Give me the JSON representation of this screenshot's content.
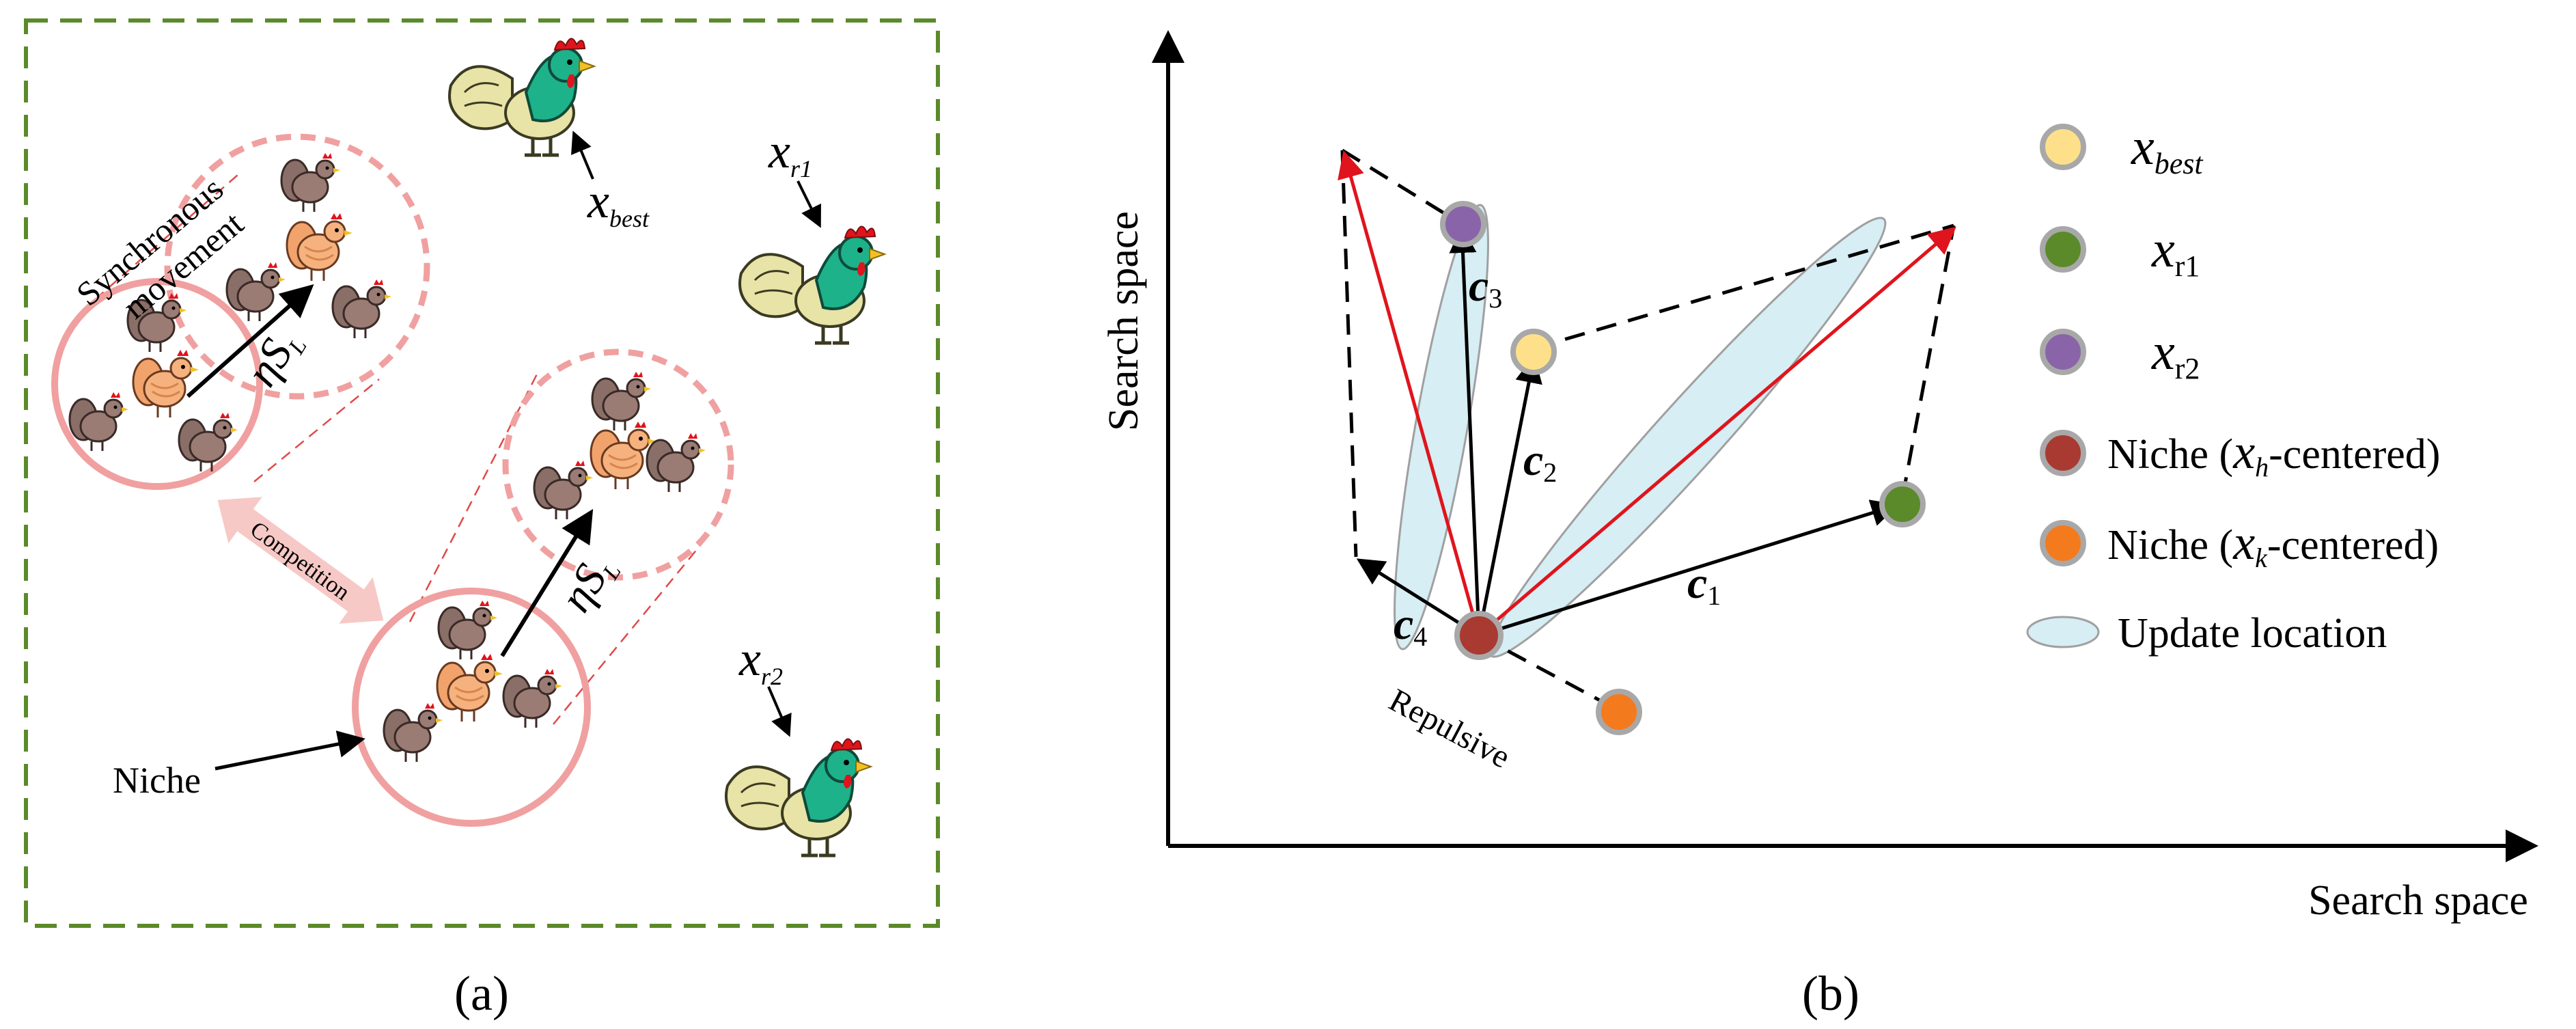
{
  "panel_a": {
    "caption": "(a)",
    "labels": {
      "synchronous_line1": "Synchronous",
      "synchronous_line2": "movement",
      "competition": "Competition",
      "niche": "Niche",
      "eta": "η",
      "step_s": "S",
      "step_sub": "L"
    },
    "roosters": [
      {
        "var": "x",
        "sub": "best"
      },
      {
        "var": "x",
        "sub": "r1"
      },
      {
        "var": "x",
        "sub": "r2"
      }
    ],
    "colors": {
      "frame": "#5b8a2a",
      "niche_circle": "#f0a0a0",
      "competition_arrow": "#f6c9c6"
    }
  },
  "panel_b": {
    "caption": "(b)",
    "axes": {
      "xlabel": "Search space",
      "ylabel": "Search space"
    },
    "vectors": [
      {
        "var": "c",
        "sub": "1"
      },
      {
        "var": "c",
        "sub": "2"
      },
      {
        "var": "c",
        "sub": "3"
      },
      {
        "var": "c",
        "sub": "4"
      }
    ],
    "repulsive_label": "Repulsive",
    "legend": [
      {
        "var": "x",
        "sub": "best",
        "color": "#ffe08a"
      },
      {
        "var": "x",
        "sub": "r1",
        "color": "#5b8a2a"
      },
      {
        "var": "x",
        "sub": "r2",
        "color": "#8a64a8"
      },
      {
        "prefix": "Niche (",
        "var": "x",
        "sub": "h",
        "suffix": "-centered)",
        "color": "#a83a32"
      },
      {
        "prefix": "Niche (",
        "var": "x",
        "sub": "k",
        "suffix": "-centered)",
        "color": "#f47a1e"
      },
      {
        "text": "Update location",
        "color": "#d6eef4"
      }
    ],
    "colors": {
      "ellipse_fill": "#d6eef4",
      "red_arrow": "#e0141c",
      "point_ring": "#a8a8a8"
    }
  }
}
